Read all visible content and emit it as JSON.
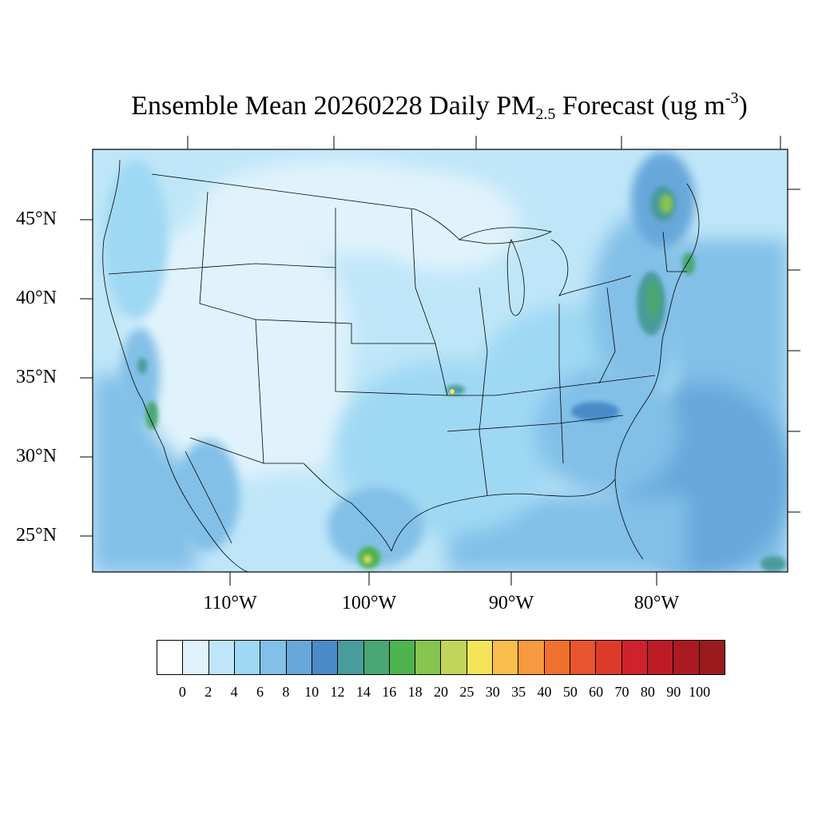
{
  "title": {
    "prefix": "Ensemble Mean 20260228 Daily PM",
    "subscript": "2.5",
    "suffix": " Forecast (ug m",
    "superscript": "-3",
    "close": ")"
  },
  "map": {
    "projection": "Lambert conformal",
    "region": "Continental United States",
    "variable": "PM2.5",
    "lat_labels": [
      "45°N",
      "40°N",
      "35°N",
      "30°N",
      "25°N"
    ],
    "lon_labels": [
      "110°W",
      "100°W",
      "90°W",
      "80°W"
    ],
    "hotspots": [
      {
        "region": "southern-quebec-ontario",
        "level": "16-18"
      },
      {
        "region": "mid-atlantic-corridor",
        "level": "16-20"
      },
      {
        "region": "southern-california",
        "level": "14-18"
      },
      {
        "region": "northeast-mexico",
        "level": "16-30"
      },
      {
        "region": "arkansas-ozarks",
        "level": "14-30"
      },
      {
        "region": "carolinas",
        "level": "12-14"
      }
    ]
  },
  "colorbar": {
    "colors": [
      "#ffffff",
      "#e0f3fc",
      "#bfe6f8",
      "#9fd8f3",
      "#82c0e8",
      "#68a7da",
      "#4a8ac7",
      "#4a9b9b",
      "#48a772",
      "#4cb34e",
      "#86c44e",
      "#c1d55a",
      "#f5e35a",
      "#f9bd4c",
      "#f6993f",
      "#f0712e",
      "#e8542d",
      "#dd3a2a",
      "#d0222d",
      "#bd1c26",
      "#ab1a22",
      "#991b1e"
    ],
    "labels": [
      "0",
      "2",
      "4",
      "6",
      "8",
      "10",
      "12",
      "14",
      "16",
      "18",
      "20",
      "25",
      "30",
      "35",
      "40",
      "50",
      "60",
      "70",
      "80",
      "90",
      "100"
    ]
  }
}
